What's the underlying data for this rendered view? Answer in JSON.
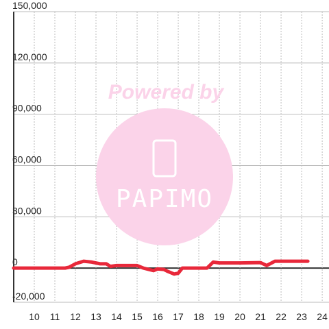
{
  "chart_data": {
    "type": "line",
    "watermark": {
      "title": "Powered by",
      "brand": "PAPIMO"
    },
    "x": [
      9,
      10,
      11,
      11.5,
      11.7,
      12,
      12.4,
      12.8,
      13.2,
      13.5,
      13.7,
      14,
      15,
      15.3,
      15.8,
      16,
      16.3,
      16.5,
      16.8,
      17,
      17.2,
      18,
      18.4,
      18.7,
      19,
      20,
      21,
      21.3,
      21.7,
      22,
      23.3
    ],
    "series": [
      {
        "color": "#e8283a",
        "values": [
          0,
          0,
          0,
          0,
          500,
          2500,
          4000,
          3500,
          2500,
          2500,
          1000,
          1500,
          1500,
          0,
          -1500,
          -500,
          -800,
          -2000,
          -3500,
          -3000,
          0,
          0,
          0,
          3500,
          3000,
          3000,
          3200,
          1500,
          4000,
          4000,
          4000
        ]
      }
    ],
    "xlim": [
      9,
      24.33
    ],
    "xticks": [
      10,
      11,
      12,
      13,
      14,
      15,
      16,
      17,
      18,
      19,
      20,
      21,
      22,
      23,
      24
    ],
    "ylim": [
      -20000,
      150000
    ],
    "yticks": [
      {
        "value": -20000,
        "label": "-20,000"
      },
      0,
      {
        "value": 30000,
        "label": "30,000"
      },
      {
        "value": 60000,
        "label": "60,000"
      },
      {
        "value": 90000,
        "label": "90,000"
      },
      {
        "value": 120000,
        "label": "120,000"
      },
      {
        "value": 150000,
        "label": "150,000"
      }
    ],
    "grid": true
  }
}
